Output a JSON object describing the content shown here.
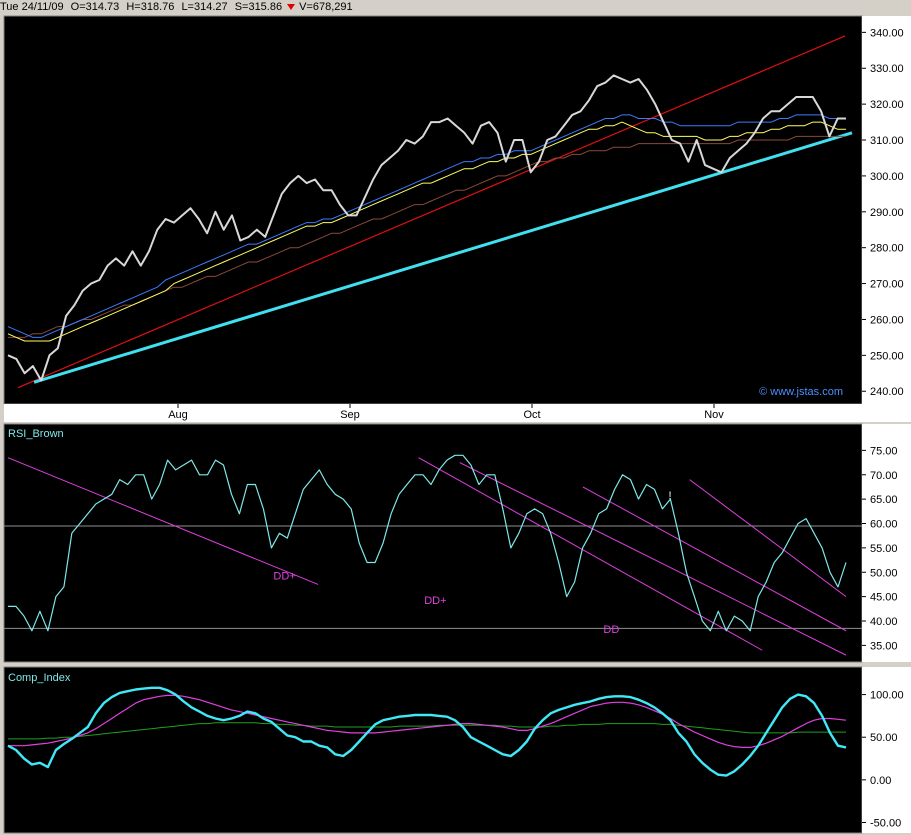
{
  "header": {
    "date": "Tue 24/11/09",
    "open": "O=314.73",
    "high": "H=318.76",
    "low": "L=314.27",
    "settle": "S=315.86",
    "volume": "V=678,291"
  },
  "colors": {
    "background": "#000000",
    "price": "#d8d8d8",
    "ma_blue": "#3a7cff",
    "ma_yellow": "#ffff60",
    "ma_brown": "#8a4a3a",
    "trend_red": "#e01010",
    "trend_cyan": "#40e0f0",
    "rsi": "#7ee8e8",
    "channel": "#e040e0",
    "comp": "#40e8f8",
    "comp_fast_ma": "#e040e0",
    "comp_slow_ma": "#20a020",
    "ref_line": "#909090"
  },
  "chart_data": [
    {
      "type": "line",
      "panel": "price",
      "ylim": [
        237,
        344
      ],
      "yticks": [
        "340.00",
        "330.00",
        "320.00",
        "310.00",
        "300.00",
        "290.00",
        "280.00",
        "270.00",
        "260.00",
        "250.00",
        "240.00"
      ],
      "xticks": [
        "Aug",
        "Sep",
        "Oct",
        "Nov"
      ],
      "watermark": "© www.jstas.com",
      "series": [
        {
          "values": [
            250,
            249,
            245,
            247,
            243,
            250,
            252,
            261,
            264,
            268,
            270,
            271,
            275,
            277,
            275,
            279,
            275,
            279,
            285,
            288,
            287,
            289,
            291,
            288,
            284,
            290,
            285,
            289,
            282,
            283,
            285,
            283,
            289,
            295,
            298,
            300,
            298,
            299,
            296,
            296,
            292,
            289,
            289,
            294,
            299,
            303,
            305,
            307,
            310,
            309,
            311,
            315,
            315,
            316,
            314,
            312,
            309,
            314,
            315,
            312,
            304,
            310,
            310,
            301,
            304,
            310,
            311,
            314,
            317,
            318,
            321,
            325,
            326,
            328,
            327,
            326,
            327,
            324,
            320,
            315,
            310,
            309,
            304,
            310,
            303,
            302,
            301,
            305,
            307,
            309,
            312,
            316,
            318,
            318,
            320,
            322,
            322,
            322,
            318,
            311,
            316,
            316
          ]
        },
        {
          "values": [
            258,
            257,
            256,
            255,
            255,
            256,
            257,
            258,
            259,
            260,
            261,
            262,
            263,
            264,
            265,
            266,
            267,
            268,
            269,
            271,
            272,
            273,
            274,
            275,
            276,
            277,
            278,
            279,
            280,
            281,
            281,
            282,
            283,
            284,
            285,
            286,
            287,
            287,
            288,
            288,
            289,
            290,
            291,
            292,
            293,
            294,
            295,
            296,
            297,
            298,
            299,
            300,
            301,
            302,
            303,
            304,
            304,
            305,
            305,
            306,
            306,
            307,
            307,
            307,
            308,
            309,
            310,
            311,
            312,
            313,
            314,
            315,
            316,
            316,
            317,
            317,
            316,
            316,
            316,
            315,
            315,
            314,
            314,
            314,
            314,
            314,
            314,
            314,
            315,
            315,
            315,
            315,
            315,
            316,
            316,
            317,
            317,
            317,
            317,
            316,
            316,
            316
          ]
        },
        {
          "values": [
            256,
            255,
            254,
            254,
            254,
            254,
            255,
            256,
            257,
            258,
            259,
            260,
            261,
            262,
            263,
            264,
            265,
            266,
            267,
            268,
            270,
            271,
            272,
            273,
            274,
            275,
            276,
            277,
            278,
            279,
            280,
            281,
            282,
            283,
            284,
            285,
            286,
            286,
            287,
            287,
            288,
            289,
            290,
            291,
            292,
            293,
            294,
            295,
            296,
            297,
            298,
            298,
            299,
            300,
            301,
            302,
            302,
            303,
            304,
            304,
            305,
            305,
            306,
            306,
            307,
            308,
            309,
            310,
            311,
            312,
            313,
            313,
            314,
            314,
            315,
            314,
            313,
            312,
            312,
            311,
            311,
            311,
            311,
            311,
            310,
            310,
            310,
            311,
            311,
            312,
            312,
            312,
            313,
            313,
            314,
            314,
            314,
            315,
            315,
            314,
            313,
            313
          ]
        },
        {
          "values": [
            255,
            255,
            255,
            256,
            256,
            257,
            258,
            258,
            259,
            260,
            260,
            261,
            262,
            263,
            264,
            264,
            265,
            266,
            267,
            268,
            269,
            269,
            270,
            271,
            272,
            272,
            273,
            274,
            275,
            276,
            276,
            277,
            278,
            279,
            280,
            280,
            281,
            282,
            283,
            284,
            284,
            285,
            286,
            287,
            288,
            288,
            289,
            290,
            291,
            292,
            292,
            293,
            294,
            295,
            296,
            296,
            297,
            298,
            299,
            300,
            300,
            301,
            302,
            303,
            304,
            304,
            305,
            305,
            306,
            306,
            307,
            307,
            307,
            308,
            308,
            308,
            309,
            309,
            309,
            309,
            309,
            309,
            309,
            309,
            309,
            309,
            309,
            309,
            310,
            310,
            310,
            310,
            310,
            310,
            310,
            311,
            311,
            311,
            311,
            311,
            311,
            311
          ]
        }
      ],
      "lines": [
        {
          "values": [
            241,
            339
          ]
        },
        {
          "values": [
            242.5,
            312
          ]
        }
      ]
    },
    {
      "type": "line",
      "panel": "RSI_Brown",
      "name": "RSI_Brown",
      "ylim": [
        32,
        80
      ],
      "yticks": [
        "75.00",
        "70.00",
        "65.00",
        "60.00",
        "55.00",
        "50.00",
        "45.00",
        "40.00",
        "35.00"
      ],
      "ref_levels": [
        59.5,
        38.5
      ],
      "annotations": [
        {
          "text": "DD+",
          "x": 33,
          "y": 48.5
        },
        {
          "text": "DD+",
          "x": 51,
          "y": 43.5
        },
        {
          "text": "DD",
          "x": 72,
          "y": 37.5
        },
        {
          "text": "!",
          "x": 79,
          "y": 65
        }
      ],
      "series": [
        {
          "values": [
            43,
            43,
            41,
            38,
            42,
            38,
            45,
            47,
            58,
            60,
            62,
            64,
            65,
            66,
            69,
            68,
            70,
            70,
            65,
            68,
            73,
            71,
            72,
            73,
            70,
            70,
            73,
            72,
            66,
            62,
            68,
            68,
            63,
            55,
            58,
            57,
            62,
            67,
            69,
            71,
            68,
            66,
            65,
            63,
            56,
            52,
            52,
            56,
            62,
            66,
            68,
            70,
            70,
            68,
            71,
            73,
            74,
            74,
            72,
            68,
            70,
            70,
            63,
            55,
            58,
            62,
            63,
            62,
            58,
            52,
            45,
            48,
            55,
            58,
            62,
            63,
            67,
            70,
            69,
            65,
            68,
            67,
            63,
            65,
            58,
            50,
            45,
            40,
            38,
            42,
            38,
            41,
            40,
            38,
            45,
            48,
            52,
            54,
            57,
            60,
            61,
            58,
            55,
            50,
            47,
            52
          ]
        }
      ],
      "channels": [
        {
          "values": [
            [
              0,
              73.5
            ],
            [
              37,
              47.5
            ]
          ]
        },
        {
          "values": [
            [
              50,
              73.5
            ],
            [
              90,
              34
            ]
          ]
        },
        {
          "values": [
            [
              55,
              72.5
            ],
            [
              100,
              33
            ]
          ]
        },
        {
          "values": [
            [
              70,
              67.5
            ],
            [
              100,
              38
            ]
          ]
        },
        {
          "values": [
            [
              83,
              69
            ],
            [
              100,
              45
            ]
          ]
        }
      ]
    },
    {
      "type": "line",
      "panel": "Comp_Index",
      "name": "Comp_Index",
      "ylim": [
        -60,
        130
      ],
      "yticks": [
        "100.00",
        "50.00",
        "0.00",
        "-50.00"
      ],
      "series": [
        {
          "values": [
            40,
            35,
            25,
            18,
            20,
            15,
            35,
            42,
            48,
            55,
            62,
            78,
            90,
            97,
            102,
            104,
            106,
            107,
            108,
            108,
            105,
            100,
            92,
            85,
            80,
            75,
            72,
            70,
            72,
            75,
            80,
            78,
            72,
            68,
            60,
            52,
            50,
            45,
            45,
            40,
            38,
            30,
            28,
            35,
            45,
            55,
            65,
            70,
            72,
            74,
            75,
            76,
            76,
            76,
            75,
            74,
            70,
            62,
            50,
            45,
            40,
            35,
            30,
            28,
            35,
            45,
            60,
            70,
            78,
            82,
            85,
            88,
            90,
            92,
            95,
            97,
            98,
            98,
            97,
            94,
            90,
            85,
            78,
            70,
            55,
            45,
            30,
            20,
            12,
            6,
            5,
            10,
            18,
            28,
            40,
            55,
            70,
            85,
            95,
            100,
            98,
            90,
            75,
            55,
            40,
            38
          ]
        },
        {
          "values": [
            40,
            40,
            40,
            41,
            42,
            43,
            45,
            47,
            49,
            52,
            55,
            60,
            66,
            72,
            78,
            84,
            90,
            94,
            96,
            98,
            99,
            99,
            98,
            96,
            94,
            91,
            88,
            85,
            82,
            80,
            78,
            76,
            74,
            72,
            70,
            68,
            66,
            64,
            62,
            60,
            58,
            57,
            56,
            55,
            55,
            55,
            55,
            56,
            57,
            58,
            59,
            60,
            61,
            62,
            63,
            64,
            65,
            66,
            66,
            65,
            64,
            63,
            62,
            60,
            58,
            58,
            60,
            63,
            66,
            70,
            74,
            78,
            82,
            86,
            88,
            90,
            91,
            91,
            90,
            88,
            85,
            81,
            77,
            72,
            66,
            61,
            56,
            52,
            48,
            44,
            41,
            39,
            38,
            38,
            40,
            43,
            47,
            51,
            56,
            61,
            66,
            70,
            72,
            72,
            71,
            70
          ]
        },
        {
          "values": [
            48,
            48,
            48,
            48,
            48,
            49,
            49,
            50,
            50,
            51,
            52,
            53,
            54,
            55,
            56,
            57,
            58,
            59,
            60,
            61,
            62,
            63,
            64,
            65,
            66,
            66,
            67,
            67,
            67,
            67,
            67,
            67,
            66,
            66,
            65,
            65,
            64,
            64,
            63,
            63,
            63,
            62,
            62,
            62,
            62,
            62,
            62,
            62,
            62,
            63,
            63,
            63,
            63,
            63,
            64,
            64,
            64,
            64,
            64,
            64,
            64,
            64,
            63,
            63,
            62,
            62,
            62,
            62,
            63,
            63,
            64,
            64,
            65,
            65,
            65,
            66,
            66,
            66,
            66,
            66,
            66,
            66,
            65,
            65,
            64,
            63,
            62,
            61,
            60,
            59,
            58,
            57,
            56,
            55,
            55,
            55,
            55,
            55,
            55,
            56,
            56,
            56,
            56,
            56,
            56,
            56
          ]
        }
      ]
    }
  ]
}
